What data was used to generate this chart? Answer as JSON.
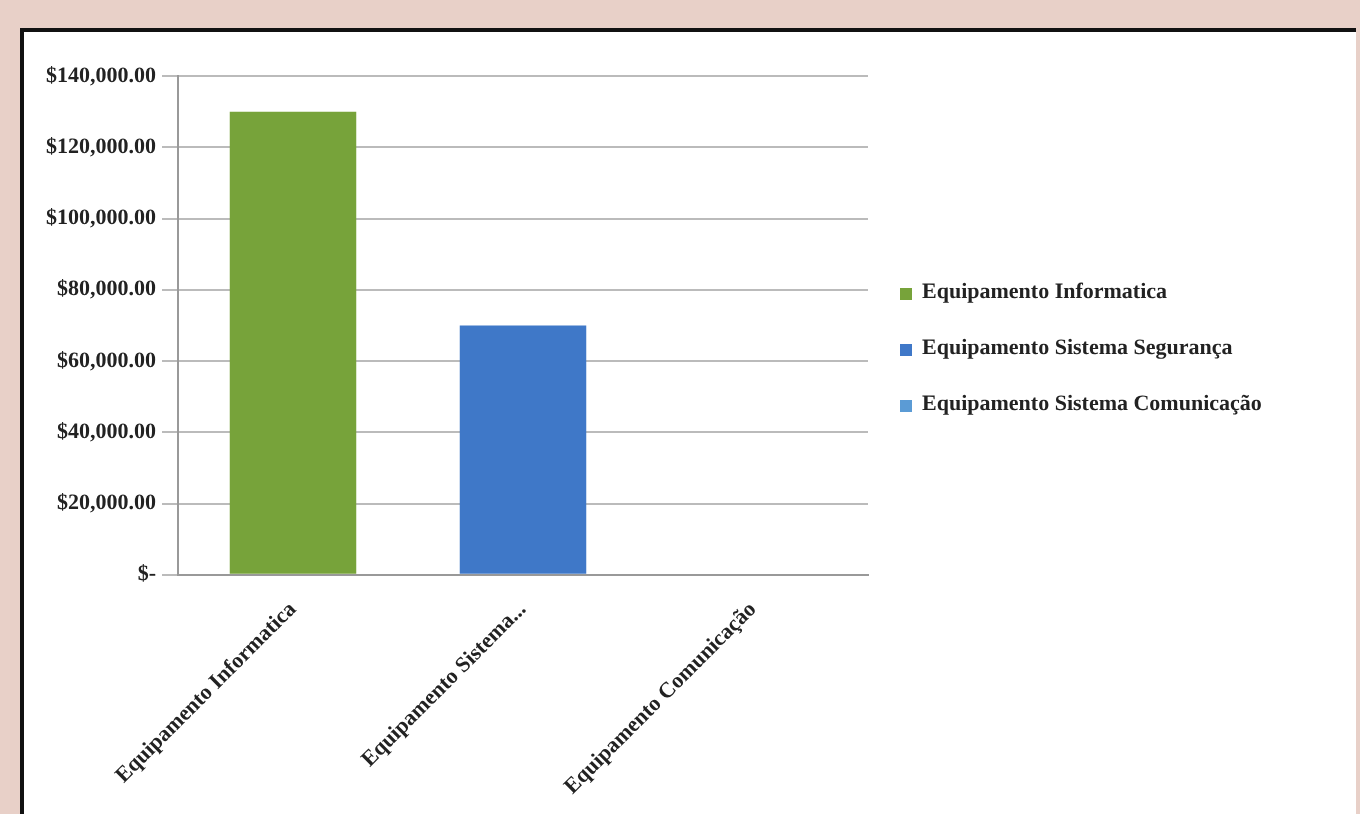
{
  "chart_data": {
    "type": "bar",
    "categories": [
      "Equipamento Informatica",
      "Equipamento Sistema...",
      "Equipamento Comunicação"
    ],
    "series": [
      {
        "name": "Equipamento Informatica",
        "color": "#77a33a",
        "values": [
          130000,
          null,
          null
        ]
      },
      {
        "name": "Equipamento Sistema Segurança",
        "color": "#3f78c8",
        "values": [
          null,
          70000,
          null
        ]
      },
      {
        "name": "Equipamento Sistema Comunicação",
        "color": "#5b9bd5",
        "values": [
          null,
          null,
          0
        ]
      }
    ],
    "ylim": [
      0,
      140000
    ],
    "yticks": [
      {
        "value": 0,
        "label": "$-"
      },
      {
        "value": 20000,
        "label": "$20,000.00"
      },
      {
        "value": 40000,
        "label": "$40,000.00"
      },
      {
        "value": 60000,
        "label": "$60,000.00"
      },
      {
        "value": 80000,
        "label": "$80,000.00"
      },
      {
        "value": 100000,
        "label": "$100,000.00"
      },
      {
        "value": 120000,
        "label": "$120,000.00"
      },
      {
        "value": 140000,
        "label": "$140,000.00"
      }
    ],
    "grid": "y",
    "legend": "right"
  }
}
